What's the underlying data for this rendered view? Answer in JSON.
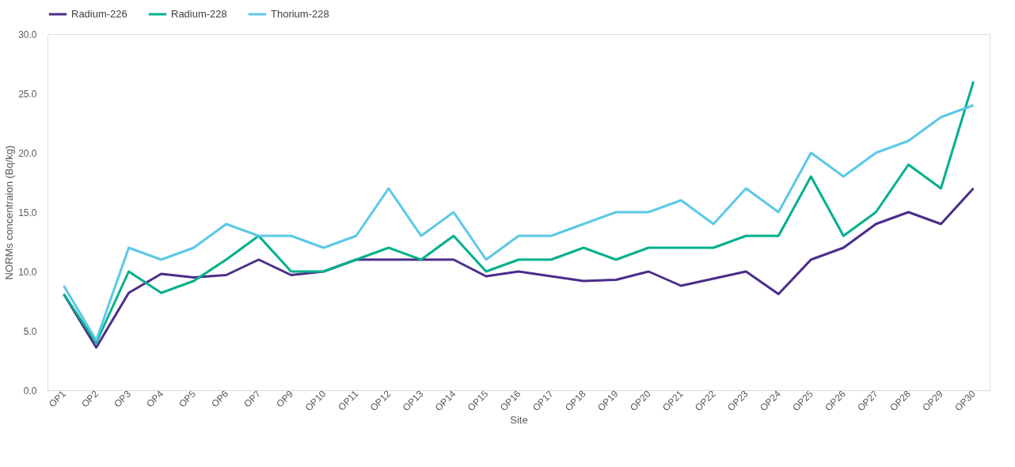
{
  "chart_data": {
    "type": "line",
    "xlabel": "Site",
    "ylabel": "NORMs concentraion (Bq/kg)",
    "categories": [
      "OP1",
      "OP2",
      "OP3",
      "OP4",
      "OP5",
      "OP6",
      "OP7",
      "OP9",
      "OP10",
      "OP11",
      "OP12",
      "OP13",
      "OP14",
      "OP15",
      "OP16",
      "OP17",
      "OP18",
      "OP19",
      "OP20",
      "OP21",
      "OP22",
      "OP23",
      "OP24",
      "OP25",
      "OP26",
      "OP27",
      "OP28",
      "OP29",
      "OP30"
    ],
    "series": [
      {
        "name": "Radium-226",
        "color": "#4b2d8a",
        "values": [
          8.1,
          3.6,
          8.2,
          9.8,
          9.5,
          9.7,
          11,
          9.7,
          10,
          11,
          11,
          11,
          11,
          9.6,
          10,
          9.6,
          9.2,
          9.3,
          10,
          8.8,
          9.4,
          10,
          8.1,
          11,
          12,
          14,
          15,
          14,
          17
        ]
      },
      {
        "name": "Radium-228",
        "color": "#00b08c",
        "values": [
          8.1,
          4.0,
          10,
          8.2,
          9.2,
          11,
          13,
          10,
          10,
          11,
          12,
          11,
          13,
          10,
          11,
          11,
          12,
          11,
          12,
          12,
          12,
          13,
          13,
          18,
          13,
          15,
          19,
          17,
          26
        ]
      },
      {
        "name": "Thorium-228",
        "color": "#5bc8e8",
        "values": [
          8.8,
          4.2,
          12,
          11,
          12,
          14,
          13,
          13,
          12,
          13,
          17,
          13,
          15,
          11,
          13,
          13,
          14,
          15,
          15,
          16,
          14,
          17,
          15,
          20,
          18,
          20,
          21,
          23,
          24
        ]
      }
    ],
    "ylim": [
      0,
      30
    ],
    "yticks": [
      {
        "value": 0,
        "label": "0.0"
      },
      {
        "value": 5,
        "label": "5.0"
      },
      {
        "value": 10,
        "label": "10.0"
      },
      {
        "value": 15,
        "label": "15.0"
      },
      {
        "value": 20,
        "label": "20.0"
      },
      {
        "value": 25,
        "label": "25.0"
      },
      {
        "value": 30,
        "label": "30.0"
      }
    ],
    "grid": false,
    "legend": "top",
    "marker": "none",
    "line_style": "solid"
  }
}
